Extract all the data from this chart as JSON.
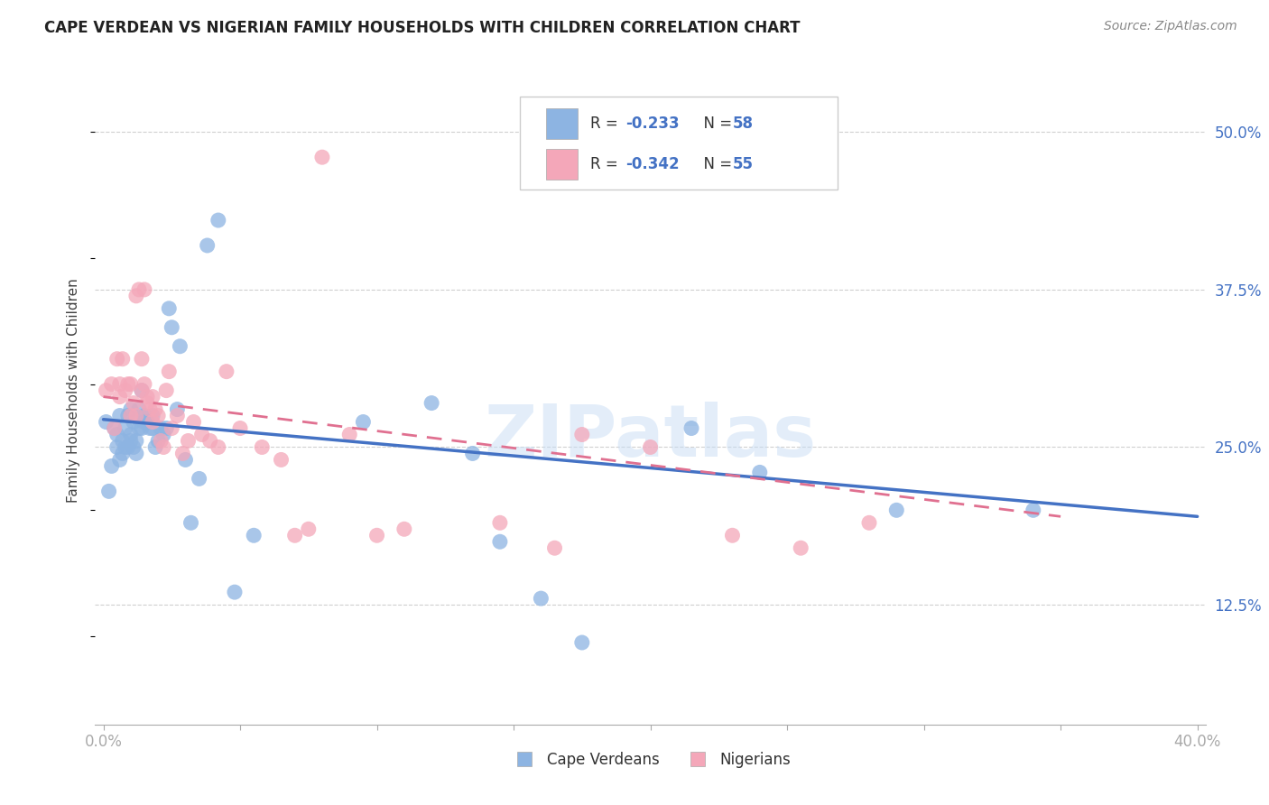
{
  "title": "CAPE VERDEAN VS NIGERIAN FAMILY HOUSEHOLDS WITH CHILDREN CORRELATION CHART",
  "source": "Source: ZipAtlas.com",
  "ylabel": "Family Households with Children",
  "xlim": [
    -0.003,
    0.403
  ],
  "ylim": [
    0.03,
    0.56
  ],
  "xtick_positions": [
    0.0,
    0.05,
    0.1,
    0.15,
    0.2,
    0.25,
    0.3,
    0.35,
    0.4
  ],
  "ytick_positions": [
    0.125,
    0.25,
    0.375,
    0.5
  ],
  "ytick_labels": [
    "12.5%",
    "25.0%",
    "37.5%",
    "50.0%"
  ],
  "xtick_show": [
    0.0,
    0.4
  ],
  "xtick_show_labels": [
    "0.0%",
    "40.0%"
  ],
  "legend_R_blue": "-0.233",
  "legend_N_blue": "58",
  "legend_R_pink": "-0.342",
  "legend_N_pink": "55",
  "blue_color": "#8db4e2",
  "pink_color": "#f4a7b9",
  "blue_line_color": "#4472c4",
  "pink_line_color": "#e07090",
  "text_color": "#404040",
  "grid_color": "#d0d0d0",
  "watermark": "ZIPatlas",
  "blue_scatter_x": [
    0.001,
    0.002,
    0.003,
    0.004,
    0.005,
    0.005,
    0.006,
    0.006,
    0.007,
    0.007,
    0.008,
    0.008,
    0.009,
    0.009,
    0.01,
    0.01,
    0.01,
    0.011,
    0.011,
    0.012,
    0.012,
    0.013,
    0.013,
    0.014,
    0.014,
    0.015,
    0.015,
    0.016,
    0.016,
    0.017,
    0.018,
    0.018,
    0.019,
    0.02,
    0.021,
    0.022,
    0.023,
    0.024,
    0.025,
    0.027,
    0.028,
    0.03,
    0.032,
    0.035,
    0.038,
    0.042,
    0.048,
    0.055,
    0.095,
    0.12,
    0.135,
    0.145,
    0.16,
    0.175,
    0.215,
    0.24,
    0.29,
    0.34
  ],
  "blue_scatter_y": [
    0.27,
    0.215,
    0.235,
    0.265,
    0.25,
    0.26,
    0.275,
    0.24,
    0.245,
    0.255,
    0.25,
    0.265,
    0.275,
    0.25,
    0.26,
    0.28,
    0.255,
    0.27,
    0.25,
    0.245,
    0.255,
    0.265,
    0.28,
    0.295,
    0.265,
    0.27,
    0.275,
    0.27,
    0.27,
    0.265,
    0.265,
    0.275,
    0.25,
    0.255,
    0.265,
    0.26,
    0.265,
    0.36,
    0.345,
    0.28,
    0.33,
    0.24,
    0.19,
    0.225,
    0.41,
    0.43,
    0.135,
    0.18,
    0.27,
    0.285,
    0.245,
    0.175,
    0.13,
    0.095,
    0.265,
    0.23,
    0.2,
    0.2
  ],
  "pink_scatter_x": [
    0.001,
    0.003,
    0.004,
    0.005,
    0.006,
    0.006,
    0.007,
    0.008,
    0.009,
    0.01,
    0.01,
    0.011,
    0.012,
    0.012,
    0.013,
    0.014,
    0.014,
    0.015,
    0.015,
    0.016,
    0.016,
    0.017,
    0.018,
    0.018,
    0.019,
    0.02,
    0.021,
    0.022,
    0.023,
    0.024,
    0.025,
    0.027,
    0.029,
    0.031,
    0.033,
    0.036,
    0.039,
    0.042,
    0.045,
    0.05,
    0.058,
    0.065,
    0.07,
    0.075,
    0.08,
    0.09,
    0.1,
    0.11,
    0.145,
    0.165,
    0.175,
    0.2,
    0.23,
    0.255,
    0.28
  ],
  "pink_scatter_y": [
    0.295,
    0.3,
    0.265,
    0.32,
    0.29,
    0.3,
    0.32,
    0.295,
    0.3,
    0.275,
    0.3,
    0.285,
    0.275,
    0.37,
    0.375,
    0.32,
    0.295,
    0.3,
    0.375,
    0.285,
    0.29,
    0.28,
    0.29,
    0.27,
    0.28,
    0.275,
    0.255,
    0.25,
    0.295,
    0.31,
    0.265,
    0.275,
    0.245,
    0.255,
    0.27,
    0.26,
    0.255,
    0.25,
    0.31,
    0.265,
    0.25,
    0.24,
    0.18,
    0.185,
    0.48,
    0.26,
    0.18,
    0.185,
    0.19,
    0.17,
    0.26,
    0.25,
    0.18,
    0.17,
    0.19
  ]
}
